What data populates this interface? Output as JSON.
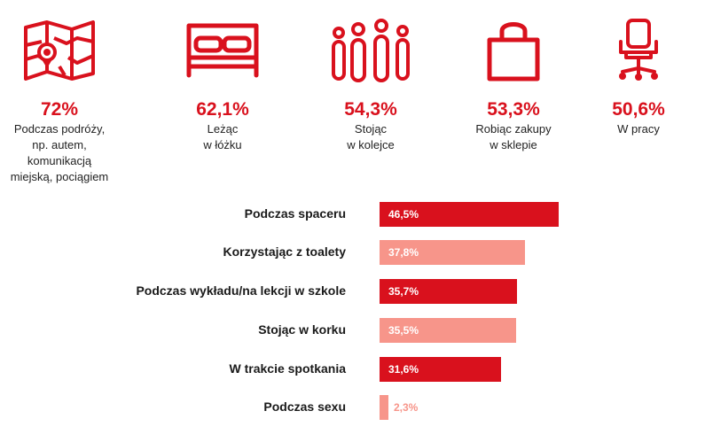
{
  "chart_data": [
    {
      "type": "pictograph",
      "items": [
        {
          "icon": "map-icon",
          "value": "72%",
          "label_lines": [
            "Podczas podróży,",
            "np. autem,",
            "komunikacją",
            "miejską, pociągiem"
          ]
        },
        {
          "icon": "bed-icon",
          "value": "62,1%",
          "label_lines": [
            "Leżąc",
            "w łóżku"
          ]
        },
        {
          "icon": "people-standing-icon",
          "value": "54,3%",
          "label_lines": [
            "Stojąc",
            "w kolejce"
          ]
        },
        {
          "icon": "shopping-bag-icon",
          "value": "53,3%",
          "label_lines": [
            "Robiąc zakupy",
            "w sklepie"
          ]
        },
        {
          "icon": "office-chair-icon",
          "value": "50,6%",
          "label_lines": [
            "W pracy"
          ]
        }
      ]
    },
    {
      "type": "bar",
      "orientation": "horizontal",
      "categories": [
        "Podczas spaceru",
        "Korzystając z toalety",
        "Podczas wykładu/na lekcji w szkole",
        "Stojąc w korku",
        "W trakcie spotkania",
        "Podczas sexu"
      ],
      "values": [
        46.5,
        37.8,
        35.7,
        35.5,
        31.6,
        2.3
      ],
      "value_labels": [
        "46,5%",
        "37,8%",
        "35,7%",
        "35,5%",
        "31,6%",
        "2,3%"
      ],
      "bar_colors": [
        "#d9111d",
        "#f7958a",
        "#d9111d",
        "#f7958a",
        "#d9111d",
        "#f7958a"
      ],
      "xlim": [
        0,
        46.5
      ]
    }
  ],
  "colors": {
    "accent": "#d9111d",
    "light": "#f7958a"
  }
}
